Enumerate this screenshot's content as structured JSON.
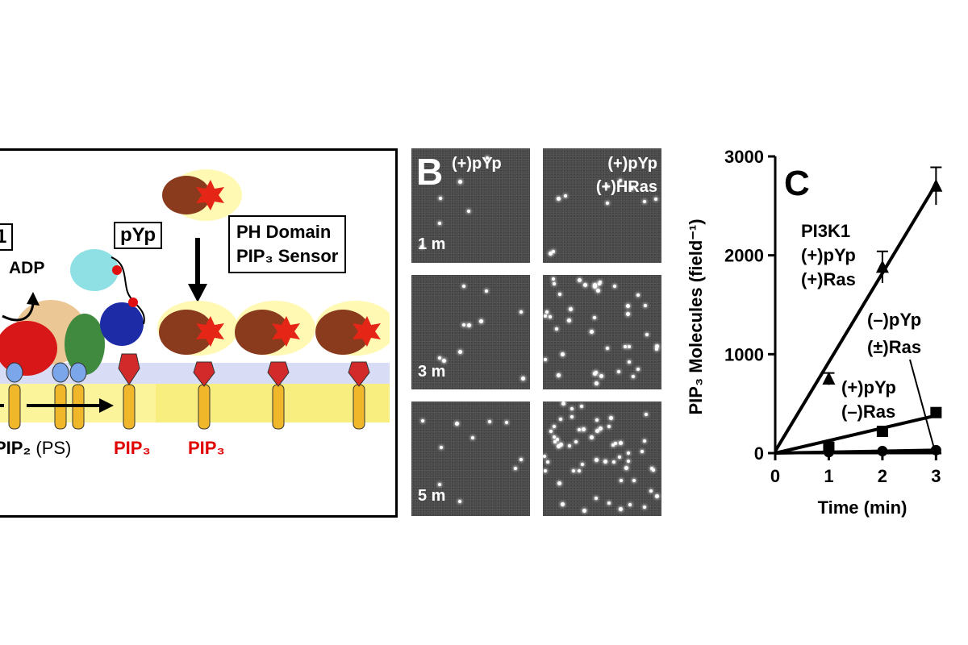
{
  "panel_a": {
    "boxed_1": "1",
    "adp": "ADP",
    "pyp": "pYp",
    "ph_domain_line1": "PH Domain",
    "ph_domain_line2": "PIP₃ Sensor",
    "pip2": "PIP₂",
    "ps": "(PS)",
    "pip3_a": "PIP₃",
    "pip3_b": "PIP₃"
  },
  "panel_b": {
    "letter": "B",
    "col1_header": "(+)pYp",
    "col2_header_line1": "(+)pYp",
    "col2_header_line2": "(+)HRas",
    "rows": [
      "1 m",
      "3 m",
      "5 m"
    ]
  },
  "panel_c": {
    "letter": "C",
    "annotation_1": [
      "PI3K1",
      "(+)pYp",
      "(+)Ras"
    ],
    "annotation_2": [
      "(–)pYp",
      "(±)Ras"
    ],
    "annotation_3": [
      "(+)pYp",
      "(–)Ras"
    ]
  },
  "chart_data": {
    "type": "line",
    "xlabel": "Time (min)",
    "ylabel": "PIP₃ Molecules (field⁻¹)",
    "x_ticks": [
      0,
      1,
      2,
      3
    ],
    "y_ticks": [
      0,
      1000,
      2000,
      3000
    ],
    "xlim": [
      0,
      3.1
    ],
    "ylim": [
      0,
      3000
    ],
    "series": [
      {
        "marker": "triangle",
        "x": [
          1,
          2,
          3
        ],
        "y": [
          750,
          1880,
          2700
        ],
        "err": [
          60,
          160,
          190
        ],
        "fit": [
          [
            0,
            20
          ],
          [
            3,
            2720
          ]
        ]
      },
      {
        "marker": "square",
        "x": [
          1,
          2,
          3
        ],
        "y": [
          60,
          220,
          410
        ],
        "err": [
          0,
          0,
          0
        ],
        "fit": [
          [
            0,
            0
          ],
          [
            3,
            380
          ]
        ]
      },
      {
        "marker": "circle",
        "x": [
          1,
          2,
          3
        ],
        "y": [
          10,
          20,
          30
        ],
        "err": [
          0,
          0,
          0
        ],
        "fit": [
          [
            0,
            0
          ],
          [
            3,
            30
          ]
        ]
      }
    ]
  }
}
